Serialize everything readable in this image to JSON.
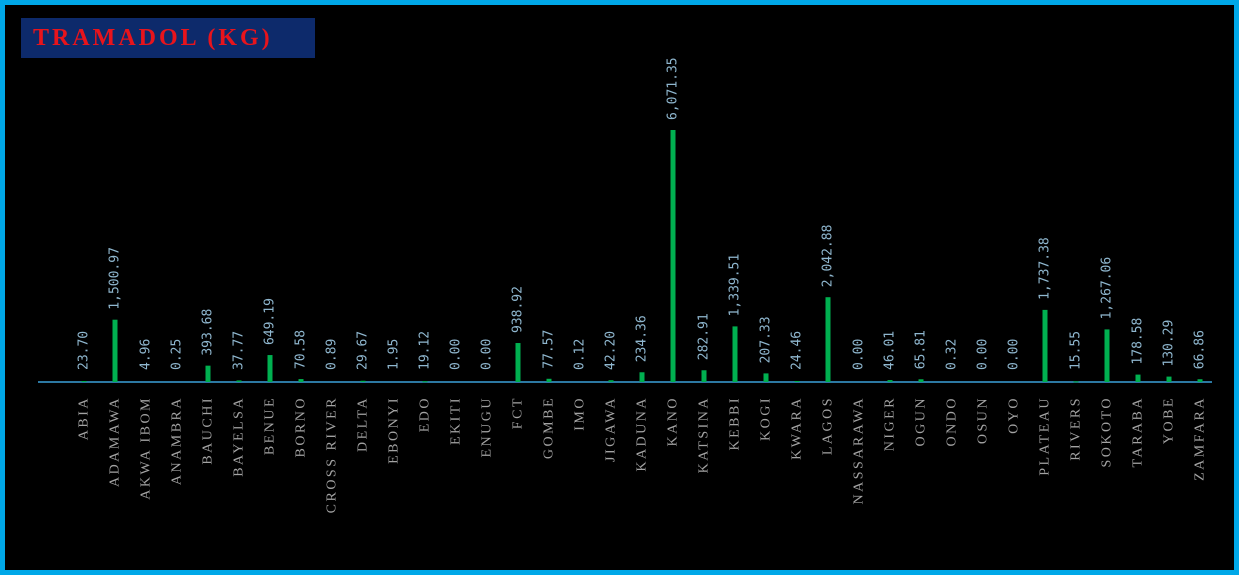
{
  "colors": {
    "background": "#000000",
    "border": "#00a8e8",
    "title_bg": "#0d2a6b",
    "title_text": "#e8141c",
    "bar": "#00b050",
    "axis": "#3aa0d8",
    "value_label": "#8fb7cf",
    "category_label": "#a3a3a3"
  },
  "chart_data": {
    "type": "bar",
    "title": "TRAMADOL (KG)",
    "xlabel": "",
    "ylabel": "",
    "ylim": [
      0,
      6071.35
    ],
    "grid": false,
    "legend": "none",
    "categories": [
      "ABIA",
      "ADAMAWA",
      "AKWA IBOM",
      "ANAMBRA",
      "BAUCHI",
      "BAYELSA",
      "BENUE",
      "BORNO",
      "CROSS RIVER",
      "DELTA",
      "EBONYI",
      "EDO",
      "EKITI",
      "ENUGU",
      "FCT",
      "GOMBE",
      "IMO",
      "JIGAWA",
      "KADUNA",
      "KANO",
      "KATSINA",
      "KEBBI",
      "KOGI",
      "KWARA",
      "LAGOS",
      "NASSARAWA",
      "NIGER",
      "OGUN",
      "ONDO",
      "OSUN",
      "OYO",
      "PLATEAU",
      "RIVERS",
      "SOKOTO",
      "TARABA",
      "YOBE",
      "ZAMFARA"
    ],
    "values": [
      23.7,
      1500.97,
      4.96,
      0.25,
      393.68,
      37.77,
      649.19,
      70.58,
      0.89,
      29.67,
      1.95,
      19.12,
      0.0,
      0.0,
      938.92,
      77.57,
      0.12,
      42.2,
      234.36,
      6071.35,
      282.91,
      1339.51,
      207.33,
      24.46,
      2042.88,
      0.0,
      46.01,
      65.81,
      0.32,
      0.0,
      0.0,
      1737.38,
      15.55,
      1267.06,
      178.58,
      130.29,
      66.86
    ],
    "labels": [
      "23.70",
      "1,500.97",
      "4.96",
      "0.25",
      "393.68",
      "37.77",
      "649.19",
      "70.58",
      "0.89",
      "29.67",
      "1.95",
      "19.12",
      "0.00",
      "0.00",
      "938.92",
      "77.57",
      "0.12",
      "42.20",
      "234.36",
      "6,071.35",
      "282.91",
      "1,339.51",
      "207.33",
      "24.46",
      "2,042.88",
      "0.00",
      "46.01",
      "65.81",
      "0.32",
      "0.00",
      "0.00",
      "1,737.38",
      "15.55",
      "1,267.06",
      "178.58",
      "130.29",
      "66.86"
    ]
  }
}
